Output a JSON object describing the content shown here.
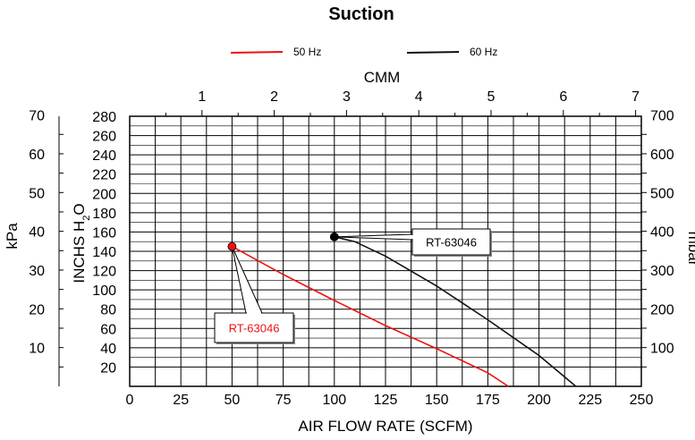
{
  "chart_data": {
    "type": "line",
    "title": "Suction",
    "xlabel": "AIR FLOW RATE (SCFM)",
    "xlim": [
      0,
      250
    ],
    "x_ticks": [
      0,
      25,
      50,
      75,
      100,
      125,
      150,
      175,
      200,
      225,
      250
    ],
    "top_axis": {
      "label": "CMM",
      "ticks": [
        1,
        2,
        3,
        4,
        5,
        6,
        7
      ]
    },
    "ylabel_inner": "INCHS H2O",
    "ylim": [
      0,
      280
    ],
    "y_ticks": [
      20,
      40,
      60,
      80,
      100,
      120,
      140,
      160,
      180,
      200,
      220,
      240,
      260,
      280
    ],
    "ylabel_outer_left": "kPa",
    "kpa_ticks": [
      10,
      20,
      30,
      40,
      50,
      60,
      70
    ],
    "ylabel_right": "mbar",
    "mbar_ticks": [
      100,
      200,
      300,
      400,
      500,
      600,
      700
    ],
    "grid": true,
    "legend_position": "top",
    "series": [
      {
        "name": "50 Hz",
        "color": "#ee1111",
        "x": [
          50,
          75,
          100,
          125,
          150,
          175,
          185
        ],
        "y": [
          145,
          116,
          89,
          63,
          39,
          14,
          0
        ]
      },
      {
        "name": "60 Hz",
        "color": "#111111",
        "x": [
          100,
          110,
          125,
          150,
          175,
          200,
          218
        ],
        "y": [
          155,
          150,
          135,
          104,
          69,
          32,
          0
        ]
      }
    ],
    "annotations": [
      {
        "text": "RT-63046",
        "x": 50,
        "y": 145,
        "color": "#ee1111"
      },
      {
        "text": "RT-63046",
        "x": 100,
        "y": 155,
        "color": "#000000"
      }
    ]
  }
}
